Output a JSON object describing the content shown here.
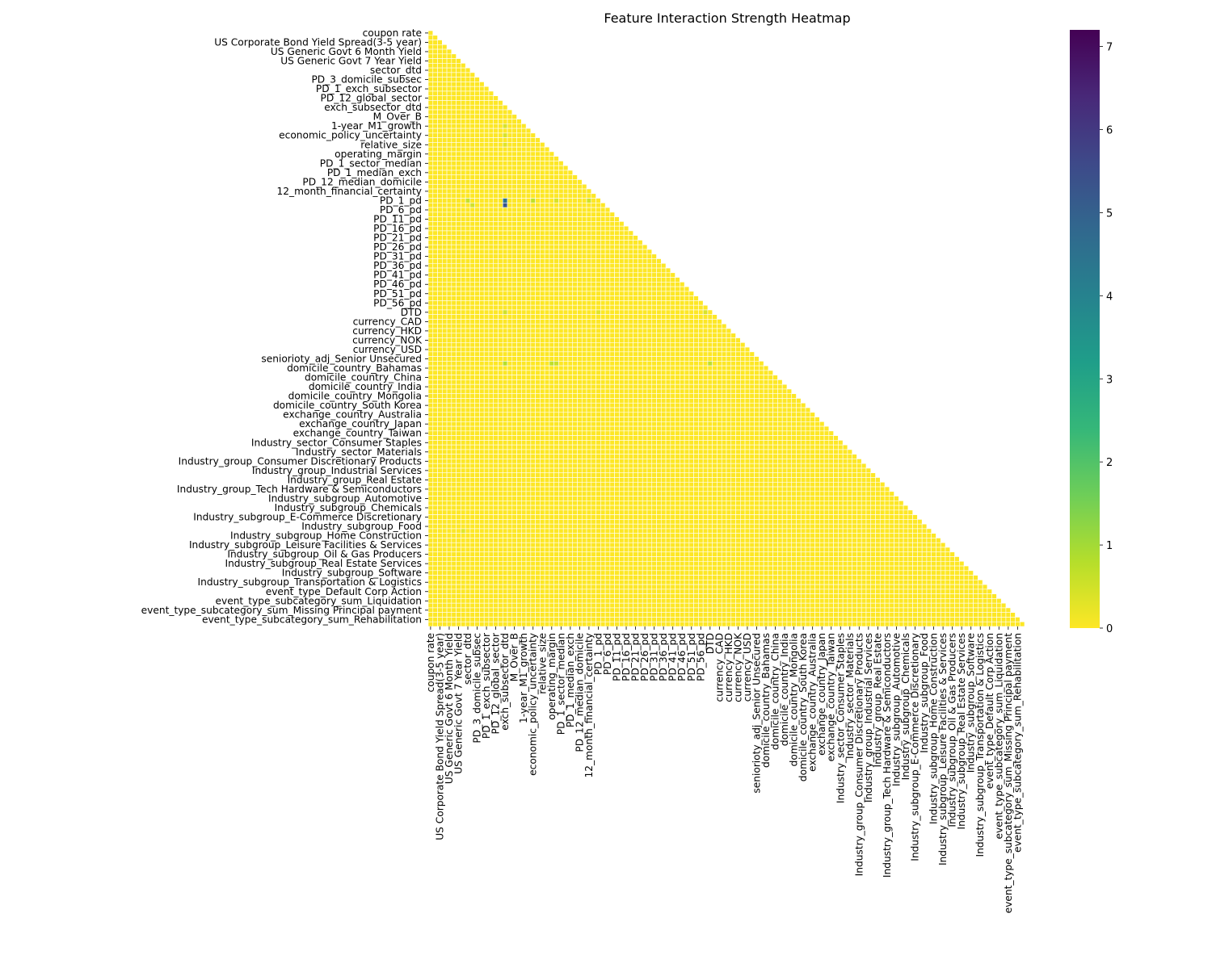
{
  "chart_data": {
    "type": "heatmap",
    "title": "Feature Interaction Strength Heatmap",
    "xlabel": "",
    "ylabel": "",
    "mask": "lower-triangle",
    "grid": true,
    "grid_color": "#ffffff",
    "colormap": "viridis_r",
    "colormap_stops": [
      "#fde725",
      "#b5de2b",
      "#6ece58",
      "#35b779",
      "#1f9e89",
      "#26828e",
      "#31688e",
      "#3e4989",
      "#482878",
      "#440154"
    ],
    "value_range": [
      0,
      7.2
    ],
    "colorbar_ticks": [
      "0",
      "1",
      "2",
      "3",
      "4",
      "5",
      "6",
      "7"
    ],
    "feature_count": 128,
    "tick_labels": [
      "coupon rate",
      "US Corporate Bond Yield Spread(3-5 year)",
      "US Generic Govt 6 Month Yield",
      "US Generic Govt 7 Year Yield",
      "sector_dtd",
      "PD_3_domicile_subsec",
      "PD_1_exch_subsector",
      "PD_12_global_sector",
      "exch_subsector_dtd",
      "M_Over_B",
      "1-year_M1_growth",
      "economic_policy_uncertainty",
      "relative_size",
      "operating_margin",
      "PD_1_sector_median",
      "PD_1_median_exch",
      "PD_12_median_domicile",
      "12_month_financial_certainty",
      "PD_1_pd",
      "PD_6_pd",
      "PD_11_pd",
      "PD_16_pd",
      "PD_21_pd",
      "PD_26_pd",
      "PD_31_pd",
      "PD_36_pd",
      "PD_41_pd",
      "PD_46_pd",
      "PD_51_pd",
      "PD_56_pd",
      "DTD",
      "currency_CAD",
      "currency_HKD",
      "currency_NOK",
      "currency_USD",
      "senioriоty_adj_Senior Unsecured",
      "domicile_country_Bahamas",
      "domicile_country_China",
      "domicile_country_India",
      "domicile_country_Mongolia",
      "domicile_country_South Korea",
      "exchange_country_Australia",
      "exchange_country_Japan",
      "exchange_country_Taiwan",
      "Industry_sector_Consumer Staples",
      "Industry_sector_Materials",
      "Industry_group_Consumer Discretionary Products",
      "Industry_group_Industrial Services",
      "Industry_group_Real Estate",
      "Industry_group_Tech Hardware & Semiconductors",
      "Industry_subgroup_Automotive",
      "Industry_subgroup_Chemicals",
      "Industry_subgroup_E-Commerce Discretionary",
      "Industry_subgroup_Food",
      "Industry_subgroup_Home Construction",
      "Industry_subgroup_Leisure Facilities & Services",
      "Industry_subgroup_Oil & Gas Producers",
      "Industry_subgroup_Real Estate Services",
      "Industry_subgroup_Software",
      "Industry_subgroup_Transportation & Logistics",
      "event_type_Default Corp Action",
      "event_type_subcategory_sum_Liquidation",
      "event_type_subcategory_sum_Missing Principal payment",
      "event_type_subcategory_sum_Rehabilitation"
    ],
    "highlighted_cells": [
      {
        "row": 36,
        "col": 16,
        "value": 4.5
      },
      {
        "row": 37,
        "col": 16,
        "value": 5.3
      },
      {
        "row": 36,
        "col": 8,
        "value": 0.6
      },
      {
        "row": 37,
        "col": 9,
        "value": 0.5
      },
      {
        "row": 36,
        "col": 22,
        "value": 0.7
      },
      {
        "row": 36,
        "col": 27,
        "value": 0.4
      },
      {
        "row": 36,
        "col": 34,
        "value": 0.5
      },
      {
        "row": 37,
        "col": 42,
        "value": 0.4
      },
      {
        "row": 60,
        "col": 16,
        "value": 0.5
      },
      {
        "row": 60,
        "col": 36,
        "value": 0.3
      },
      {
        "row": 71,
        "col": 16,
        "value": 0.8
      },
      {
        "row": 71,
        "col": 26,
        "value": 0.7
      },
      {
        "row": 71,
        "col": 27,
        "value": 0.6
      },
      {
        "row": 71,
        "col": 60,
        "value": 0.7
      },
      {
        "row": 60,
        "col": 59,
        "value": 0.4
      },
      {
        "row": 20,
        "col": 16,
        "value": 0.4
      },
      {
        "row": 22,
        "col": 16,
        "value": 0.4
      },
      {
        "row": 24,
        "col": 16,
        "value": 0.3
      },
      {
        "row": 107,
        "col": 7,
        "value": 0.3
      }
    ]
  }
}
